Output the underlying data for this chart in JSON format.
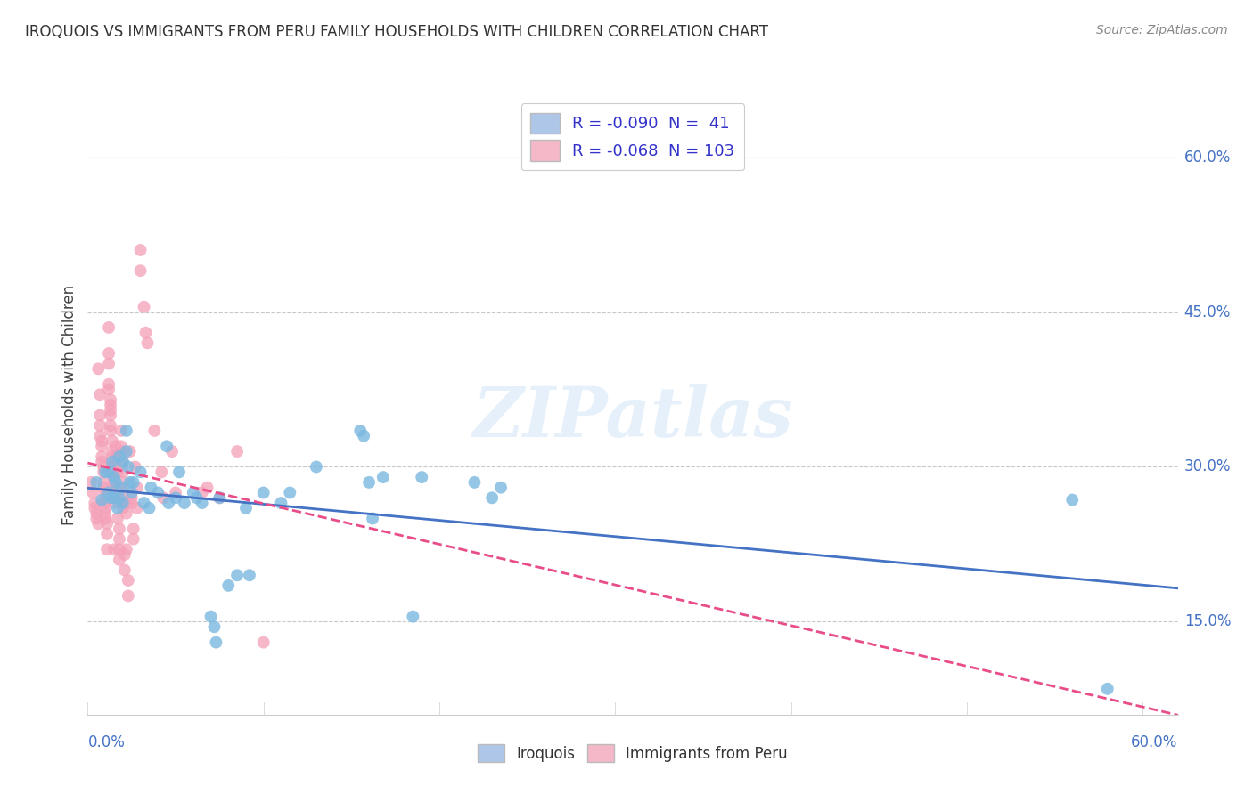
{
  "title": "IROQUOIS VS IMMIGRANTS FROM PERU FAMILY HOUSEHOLDS WITH CHILDREN CORRELATION CHART",
  "source": "Source: ZipAtlas.com",
  "ylabel": "Family Households with Children",
  "ytick_labels": [
    "15.0%",
    "30.0%",
    "45.0%",
    "60.0%"
  ],
  "ytick_values": [
    0.15,
    0.3,
    0.45,
    0.6
  ],
  "xmin": 0.0,
  "xmax": 0.62,
  "ymin": 0.06,
  "ymax": 0.66,
  "iroquois_color": "#7bb8e0",
  "peru_color": "#f4a0b8",
  "iroquois_scatter": [
    [
      0.005,
      0.285
    ],
    [
      0.008,
      0.268
    ],
    [
      0.01,
      0.295
    ],
    [
      0.012,
      0.275
    ],
    [
      0.012,
      0.295
    ],
    [
      0.013,
      0.27
    ],
    [
      0.014,
      0.305
    ],
    [
      0.015,
      0.29
    ],
    [
      0.015,
      0.27
    ],
    [
      0.016,
      0.285
    ],
    [
      0.017,
      0.26
    ],
    [
      0.018,
      0.31
    ],
    [
      0.018,
      0.27
    ],
    [
      0.019,
      0.28
    ],
    [
      0.02,
      0.265
    ],
    [
      0.02,
      0.305
    ],
    [
      0.022,
      0.315
    ],
    [
      0.022,
      0.335
    ],
    [
      0.023,
      0.3
    ],
    [
      0.024,
      0.285
    ],
    [
      0.025,
      0.275
    ],
    [
      0.026,
      0.285
    ],
    [
      0.03,
      0.295
    ],
    [
      0.032,
      0.265
    ],
    [
      0.035,
      0.26
    ],
    [
      0.036,
      0.28
    ],
    [
      0.04,
      0.275
    ],
    [
      0.045,
      0.32
    ],
    [
      0.046,
      0.265
    ],
    [
      0.05,
      0.27
    ],
    [
      0.052,
      0.295
    ],
    [
      0.055,
      0.265
    ],
    [
      0.06,
      0.275
    ],
    [
      0.062,
      0.27
    ],
    [
      0.065,
      0.265
    ],
    [
      0.07,
      0.155
    ],
    [
      0.072,
      0.145
    ],
    [
      0.073,
      0.13
    ],
    [
      0.075,
      0.27
    ],
    [
      0.08,
      0.185
    ],
    [
      0.085,
      0.195
    ],
    [
      0.09,
      0.26
    ],
    [
      0.092,
      0.195
    ],
    [
      0.1,
      0.275
    ],
    [
      0.11,
      0.265
    ],
    [
      0.115,
      0.275
    ],
    [
      0.13,
      0.3
    ],
    [
      0.155,
      0.335
    ],
    [
      0.157,
      0.33
    ],
    [
      0.16,
      0.285
    ],
    [
      0.162,
      0.25
    ],
    [
      0.168,
      0.29
    ],
    [
      0.185,
      0.155
    ],
    [
      0.19,
      0.29
    ],
    [
      0.22,
      0.285
    ],
    [
      0.23,
      0.27
    ],
    [
      0.235,
      0.28
    ],
    [
      0.56,
      0.268
    ],
    [
      0.58,
      0.085
    ]
  ],
  "peru_scatter": [
    [
      0.002,
      0.285
    ],
    [
      0.003,
      0.275
    ],
    [
      0.004,
      0.265
    ],
    [
      0.004,
      0.26
    ],
    [
      0.005,
      0.255
    ],
    [
      0.005,
      0.25
    ],
    [
      0.006,
      0.245
    ],
    [
      0.006,
      0.395
    ],
    [
      0.007,
      0.37
    ],
    [
      0.007,
      0.35
    ],
    [
      0.007,
      0.34
    ],
    [
      0.007,
      0.33
    ],
    [
      0.008,
      0.325
    ],
    [
      0.008,
      0.32
    ],
    [
      0.008,
      0.31
    ],
    [
      0.008,
      0.305
    ],
    [
      0.009,
      0.3
    ],
    [
      0.009,
      0.295
    ],
    [
      0.009,
      0.285
    ],
    [
      0.009,
      0.28
    ],
    [
      0.01,
      0.275
    ],
    [
      0.01,
      0.27
    ],
    [
      0.01,
      0.265
    ],
    [
      0.01,
      0.26
    ],
    [
      0.01,
      0.255
    ],
    [
      0.01,
      0.25
    ],
    [
      0.011,
      0.245
    ],
    [
      0.011,
      0.235
    ],
    [
      0.011,
      0.22
    ],
    [
      0.012,
      0.435
    ],
    [
      0.012,
      0.41
    ],
    [
      0.012,
      0.4
    ],
    [
      0.012,
      0.38
    ],
    [
      0.012,
      0.375
    ],
    [
      0.013,
      0.365
    ],
    [
      0.013,
      0.36
    ],
    [
      0.013,
      0.355
    ],
    [
      0.013,
      0.35
    ],
    [
      0.013,
      0.34
    ],
    [
      0.013,
      0.335
    ],
    [
      0.014,
      0.325
    ],
    [
      0.014,
      0.315
    ],
    [
      0.014,
      0.31
    ],
    [
      0.014,
      0.3
    ],
    [
      0.014,
      0.295
    ],
    [
      0.015,
      0.29
    ],
    [
      0.015,
      0.285
    ],
    [
      0.015,
      0.28
    ],
    [
      0.015,
      0.275
    ],
    [
      0.015,
      0.27
    ],
    [
      0.015,
      0.265
    ],
    [
      0.015,
      0.22
    ],
    [
      0.016,
      0.32
    ],
    [
      0.016,
      0.31
    ],
    [
      0.016,
      0.3
    ],
    [
      0.017,
      0.295
    ],
    [
      0.017,
      0.28
    ],
    [
      0.017,
      0.27
    ],
    [
      0.017,
      0.25
    ],
    [
      0.018,
      0.24
    ],
    [
      0.018,
      0.23
    ],
    [
      0.018,
      0.22
    ],
    [
      0.018,
      0.21
    ],
    [
      0.019,
      0.335
    ],
    [
      0.019,
      0.32
    ],
    [
      0.02,
      0.315
    ],
    [
      0.02,
      0.305
    ],
    [
      0.02,
      0.295
    ],
    [
      0.02,
      0.285
    ],
    [
      0.02,
      0.28
    ],
    [
      0.02,
      0.27
    ],
    [
      0.02,
      0.26
    ],
    [
      0.021,
      0.215
    ],
    [
      0.021,
      0.2
    ],
    [
      0.022,
      0.265
    ],
    [
      0.022,
      0.255
    ],
    [
      0.022,
      0.22
    ],
    [
      0.023,
      0.19
    ],
    [
      0.023,
      0.175
    ],
    [
      0.024,
      0.315
    ],
    [
      0.025,
      0.27
    ],
    [
      0.025,
      0.265
    ],
    [
      0.026,
      0.24
    ],
    [
      0.026,
      0.23
    ],
    [
      0.027,
      0.3
    ],
    [
      0.028,
      0.28
    ],
    [
      0.028,
      0.26
    ],
    [
      0.03,
      0.51
    ],
    [
      0.03,
      0.49
    ],
    [
      0.032,
      0.455
    ],
    [
      0.033,
      0.43
    ],
    [
      0.034,
      0.42
    ],
    [
      0.038,
      0.335
    ],
    [
      0.042,
      0.295
    ],
    [
      0.043,
      0.27
    ],
    [
      0.048,
      0.315
    ],
    [
      0.05,
      0.275
    ],
    [
      0.065,
      0.275
    ],
    [
      0.068,
      0.28
    ],
    [
      0.075,
      0.27
    ],
    [
      0.085,
      0.315
    ],
    [
      0.1,
      0.13
    ]
  ],
  "iroquois_line_color": "#4472c4",
  "peru_line_color": "#e84d8a",
  "watermark": "ZIPatlas",
  "background_color": "#ffffff",
  "grid_color": "#c8c8c8",
  "legend_box_color_1": "#aec6e8",
  "legend_box_color_2": "#f4b8c8",
  "legend_text_color": "#3333cc"
}
